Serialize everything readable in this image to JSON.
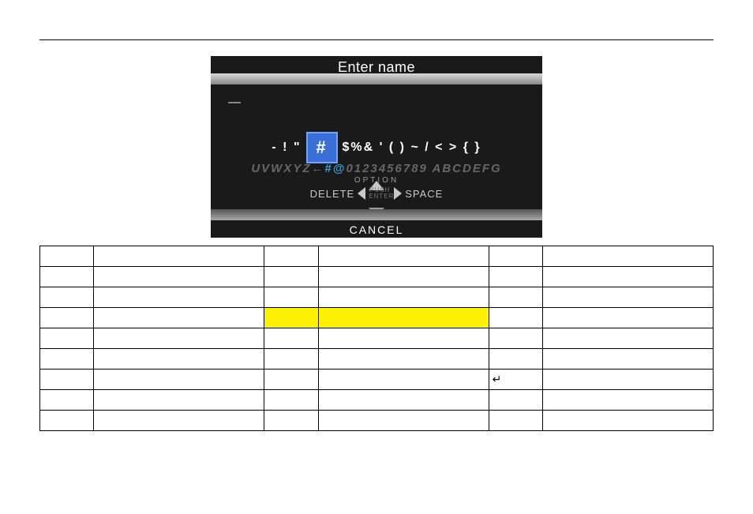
{
  "screenshot": {
    "title": "Enter name",
    "cursor": "—",
    "symbols_pre": "- ! \"",
    "hash": "#",
    "symbols_post": "$%& ' ( ) ~ / < > { }",
    "mid_left": "UVWXYZ←",
    "mid_hl": "#@",
    "mid_nums": "0123456789",
    "mid_right": " ABCDEFG",
    "option_label": "OPTION",
    "delete_label": "DELETE",
    "space_label": "SPACE",
    "center_label": "PUSH ENTER",
    "cancel_label": "CANCEL"
  },
  "table": {
    "rows": [
      [
        "",
        "",
        "",
        "",
        "",
        ""
      ],
      [
        "",
        "",
        "",
        "",
        "",
        ""
      ],
      [
        "",
        "",
        "",
        "",
        "",
        ""
      ],
      [
        "",
        "",
        "",
        "",
        "",
        ""
      ],
      [
        "",
        "",
        "",
        "",
        "",
        ""
      ],
      [
        "",
        "",
        "",
        "",
        "",
        ""
      ],
      [
        "",
        "",
        "",
        "",
        "↵",
        ""
      ],
      [
        "",
        "",
        "",
        "",
        "",
        ""
      ],
      [
        "",
        "",
        "",
        "",
        "",
        ""
      ]
    ],
    "highlight_row_index": 3,
    "highlight_cols": [
      2,
      3
    ]
  },
  "colors": {
    "highlight": "#fff200",
    "accent": "#3b6fd8",
    "border": "#000000",
    "bg": "#ffffff"
  }
}
